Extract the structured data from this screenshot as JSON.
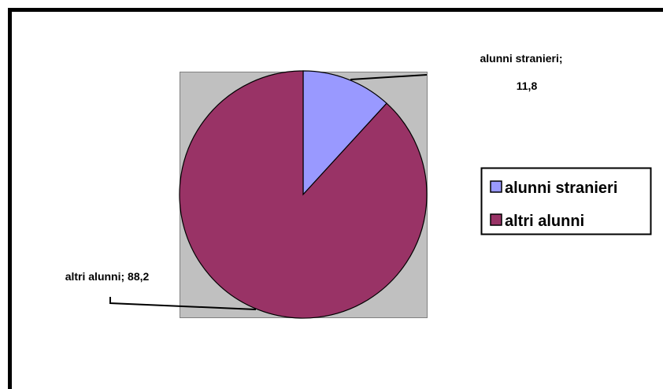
{
  "chart_data": {
    "type": "pie",
    "title": "",
    "slices": [
      {
        "name": "alunni stranieri",
        "value": 11.8,
        "color": "#9999ff"
      },
      {
        "name": "altri alunni",
        "value": 88.2,
        "color": "#993366"
      }
    ],
    "data_labels": [
      {
        "line1": "alunni stranieri;",
        "line2": "11,8"
      },
      {
        "line1": "altri alunni; 88,2"
      }
    ],
    "legend": {
      "placement": "right",
      "entries": [
        "alunni stranieri",
        "altri alunni"
      ]
    },
    "plot_area_color": "#c0c0c0",
    "border_color": "#000000"
  }
}
